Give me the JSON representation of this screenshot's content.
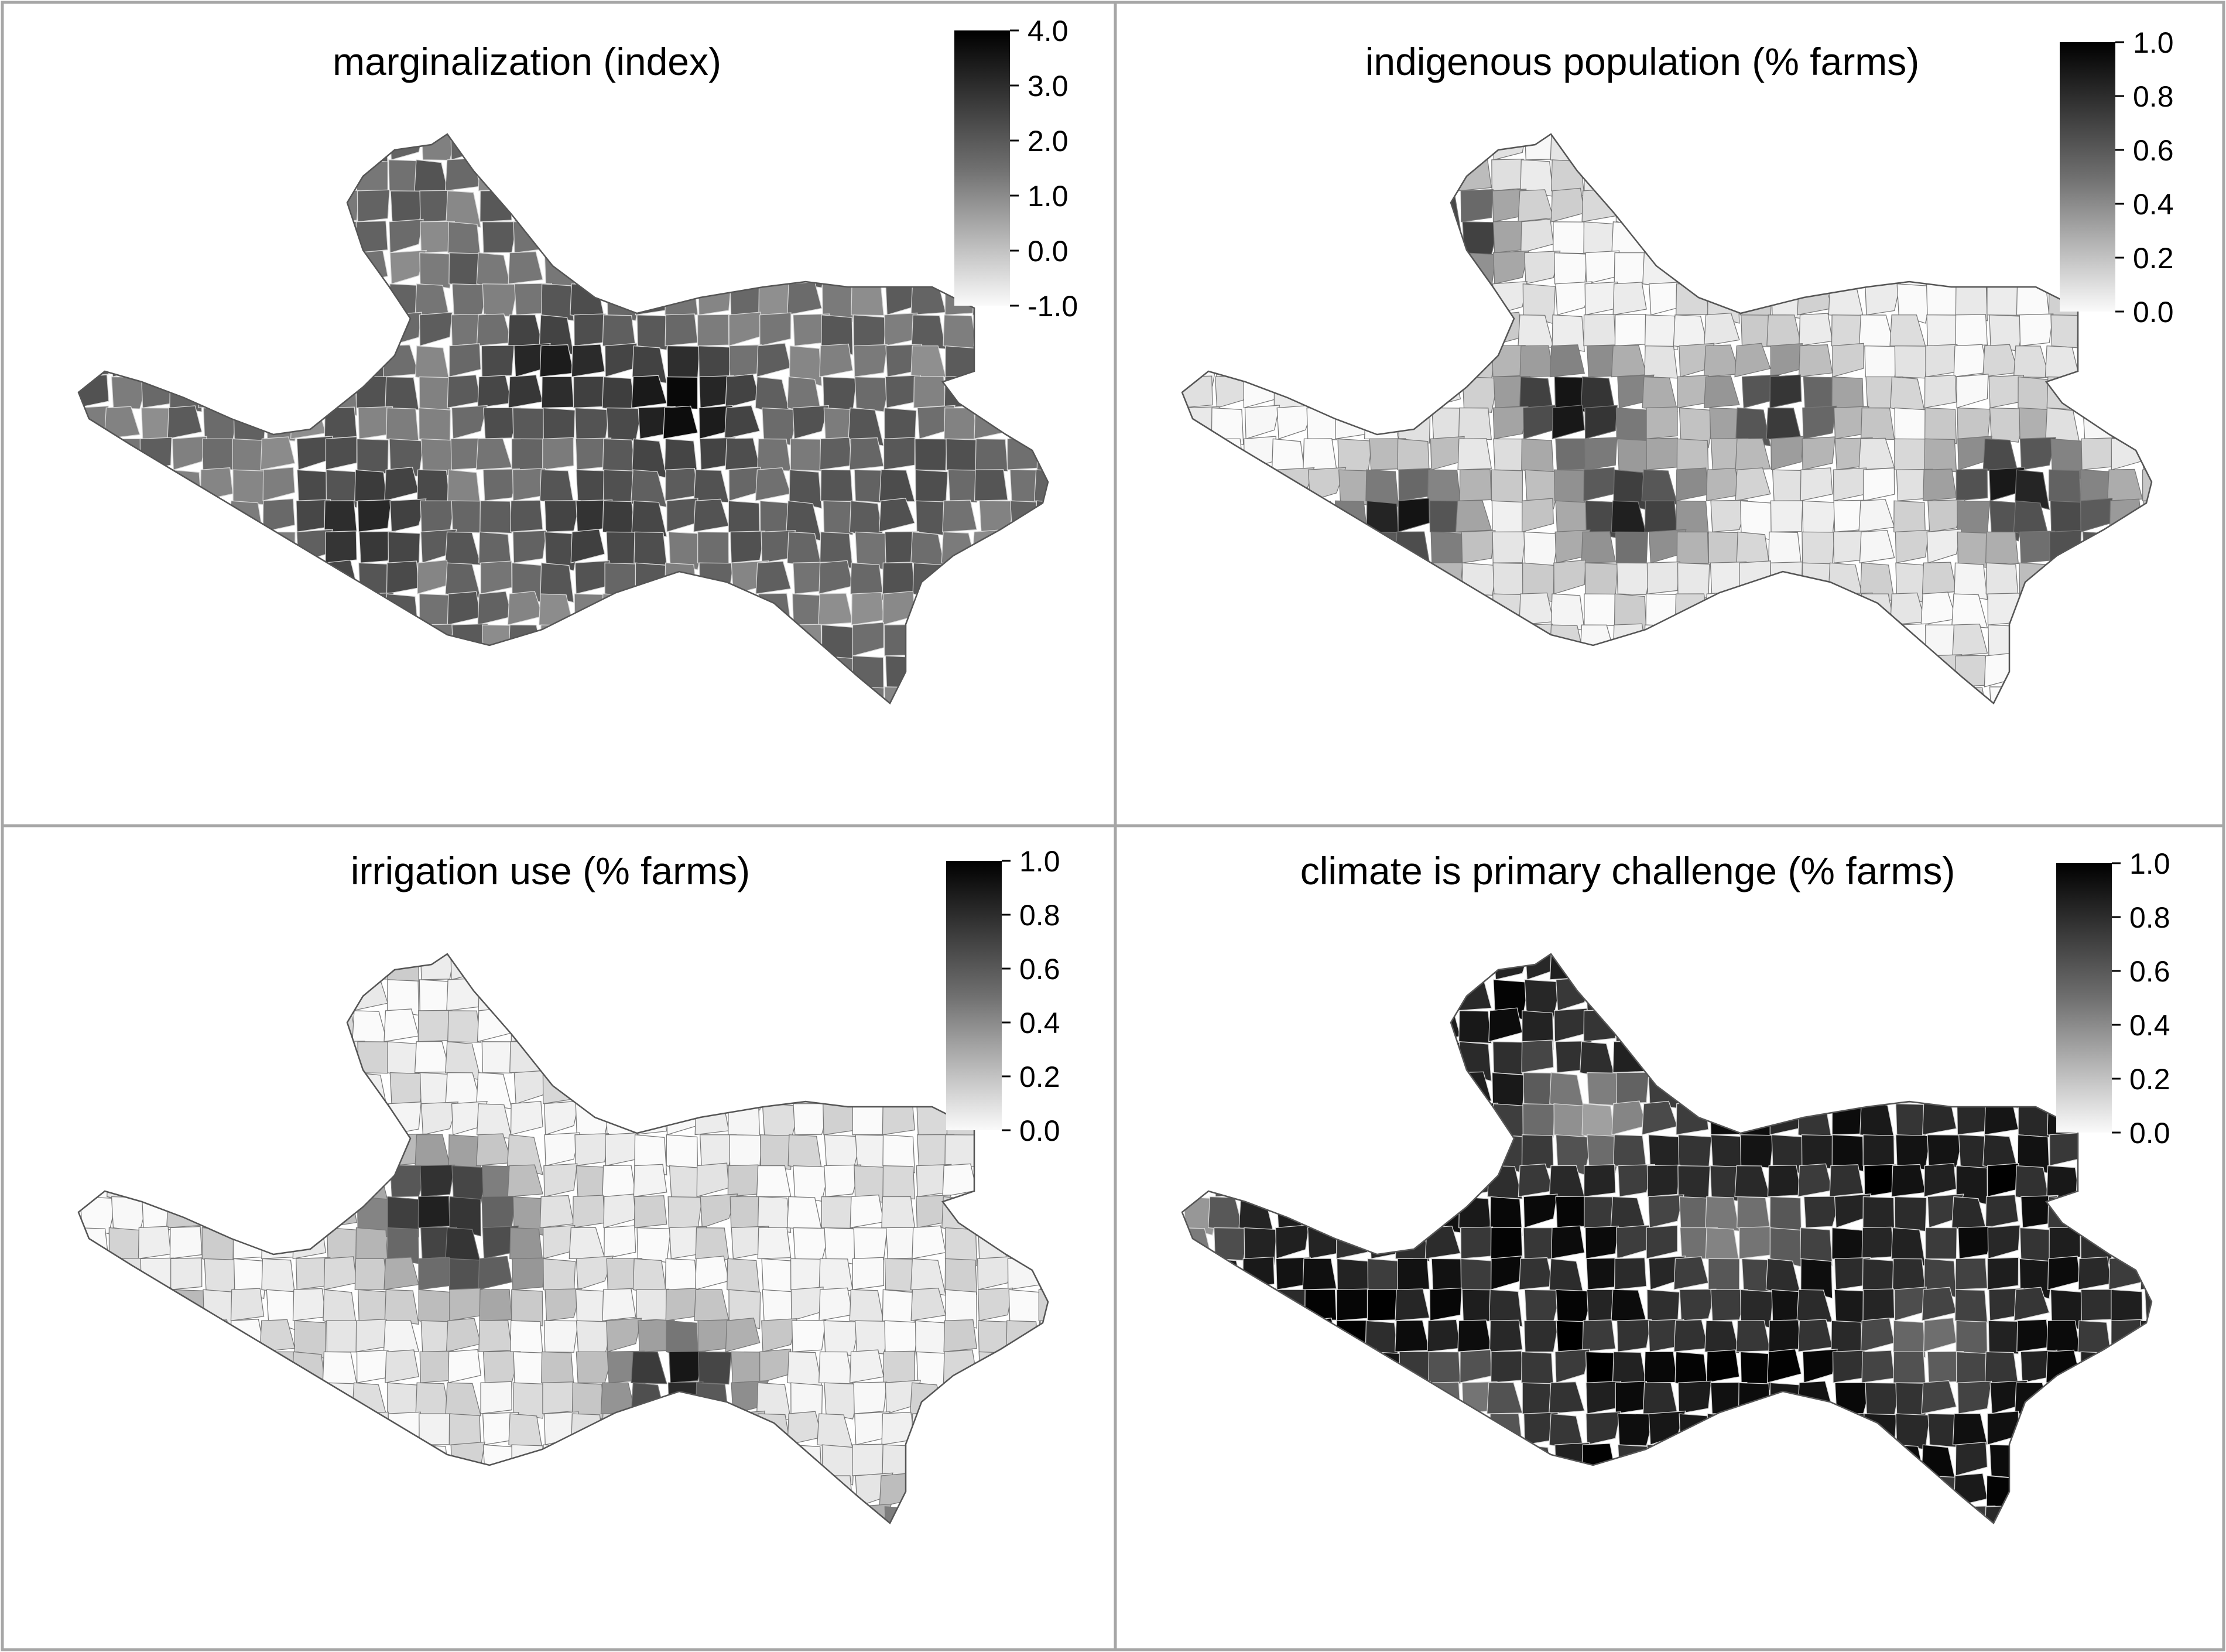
{
  "figure": {
    "panels": [
      {
        "id": "marginalization",
        "title": "marginalization (index)",
        "legend": {
          "min": -1.0,
          "max": 4.0,
          "ticks": [
            "4.0",
            "3.0",
            "2.0",
            "1.0",
            "0.0",
            "-1.0"
          ],
          "tick_values": [
            4.0,
            3.0,
            2.0,
            1.0,
            0.0,
            -1.0
          ]
        },
        "dominant_level": 0.55,
        "hotspots": [
          {
            "u": 0.6,
            "v": 0.44,
            "level": 1.0
          },
          {
            "u": 0.48,
            "v": 0.38,
            "level": 0.9
          },
          {
            "u": 0.3,
            "v": 0.62,
            "level": 0.85
          },
          {
            "u": 0.52,
            "v": 0.62,
            "level": 0.8
          },
          {
            "u": 0.82,
            "v": 0.55,
            "level": 0.7
          }
        ]
      },
      {
        "id": "indigenous",
        "title": "indigenous population (% farms)",
        "legend": {
          "min": 0.0,
          "max": 1.0,
          "ticks": [
            "1.0",
            "0.8",
            "0.6",
            "0.4",
            "0.2",
            "0.0"
          ],
          "tick_values": [
            1.0,
            0.8,
            0.6,
            0.4,
            0.2,
            0.0
          ]
        },
        "dominant_level": 0.05,
        "hotspots": [
          {
            "u": 0.28,
            "v": 0.16,
            "level": 0.9
          },
          {
            "u": 0.4,
            "v": 0.44,
            "level": 1.0
          },
          {
            "u": 0.24,
            "v": 0.62,
            "level": 0.95
          },
          {
            "u": 0.46,
            "v": 0.6,
            "level": 0.9
          },
          {
            "u": 0.82,
            "v": 0.56,
            "level": 0.95
          },
          {
            "u": 0.88,
            "v": 0.64,
            "level": 0.75
          },
          {
            "u": 0.6,
            "v": 0.44,
            "level": 0.85
          }
        ]
      },
      {
        "id": "irrigation",
        "title": "irrigation use (% farms)",
        "legend": {
          "min": 0.0,
          "max": 1.0,
          "ticks": [
            "1.0",
            "0.8",
            "0.6",
            "0.4",
            "0.2",
            "0.0"
          ],
          "tick_values": [
            1.0,
            0.8,
            0.6,
            0.4,
            0.2,
            0.0
          ]
        },
        "dominant_level": 0.06,
        "hotspots": [
          {
            "u": 0.37,
            "v": 0.4,
            "level": 0.95
          },
          {
            "u": 0.4,
            "v": 0.48,
            "level": 0.8
          },
          {
            "u": 0.6,
            "v": 0.68,
            "level": 0.95
          },
          {
            "u": 0.08,
            "v": 0.62,
            "level": 0.6
          },
          {
            "u": 0.83,
            "v": 0.95,
            "level": 0.75
          }
        ]
      },
      {
        "id": "climate",
        "title": "climate is primary challenge (% farms)",
        "legend": {
          "min": 0.0,
          "max": 1.0,
          "ticks": [
            "1.0",
            "0.8",
            "0.6",
            "0.4",
            "0.2",
            "0.0"
          ],
          "tick_values": [
            1.0,
            0.8,
            0.6,
            0.4,
            0.2,
            0.0
          ]
        },
        "dominant_level": 0.88,
        "hotspots": [
          {
            "u": 0.02,
            "v": 0.42,
            "level": 0.3
          },
          {
            "u": 0.42,
            "v": 0.26,
            "level": 0.35
          },
          {
            "u": 0.55,
            "v": 0.45,
            "level": 0.45
          },
          {
            "u": 0.74,
            "v": 0.62,
            "level": 0.55
          },
          {
            "u": 0.3,
            "v": 0.74,
            "level": 0.5
          }
        ]
      }
    ]
  },
  "colors": {
    "background": "#ffffff",
    "panel_border": "#a6a6a6",
    "boundary_light": "#777777",
    "boundary_dark": "#d8d8d8",
    "low": "#fafafa",
    "high": "#000000"
  }
}
